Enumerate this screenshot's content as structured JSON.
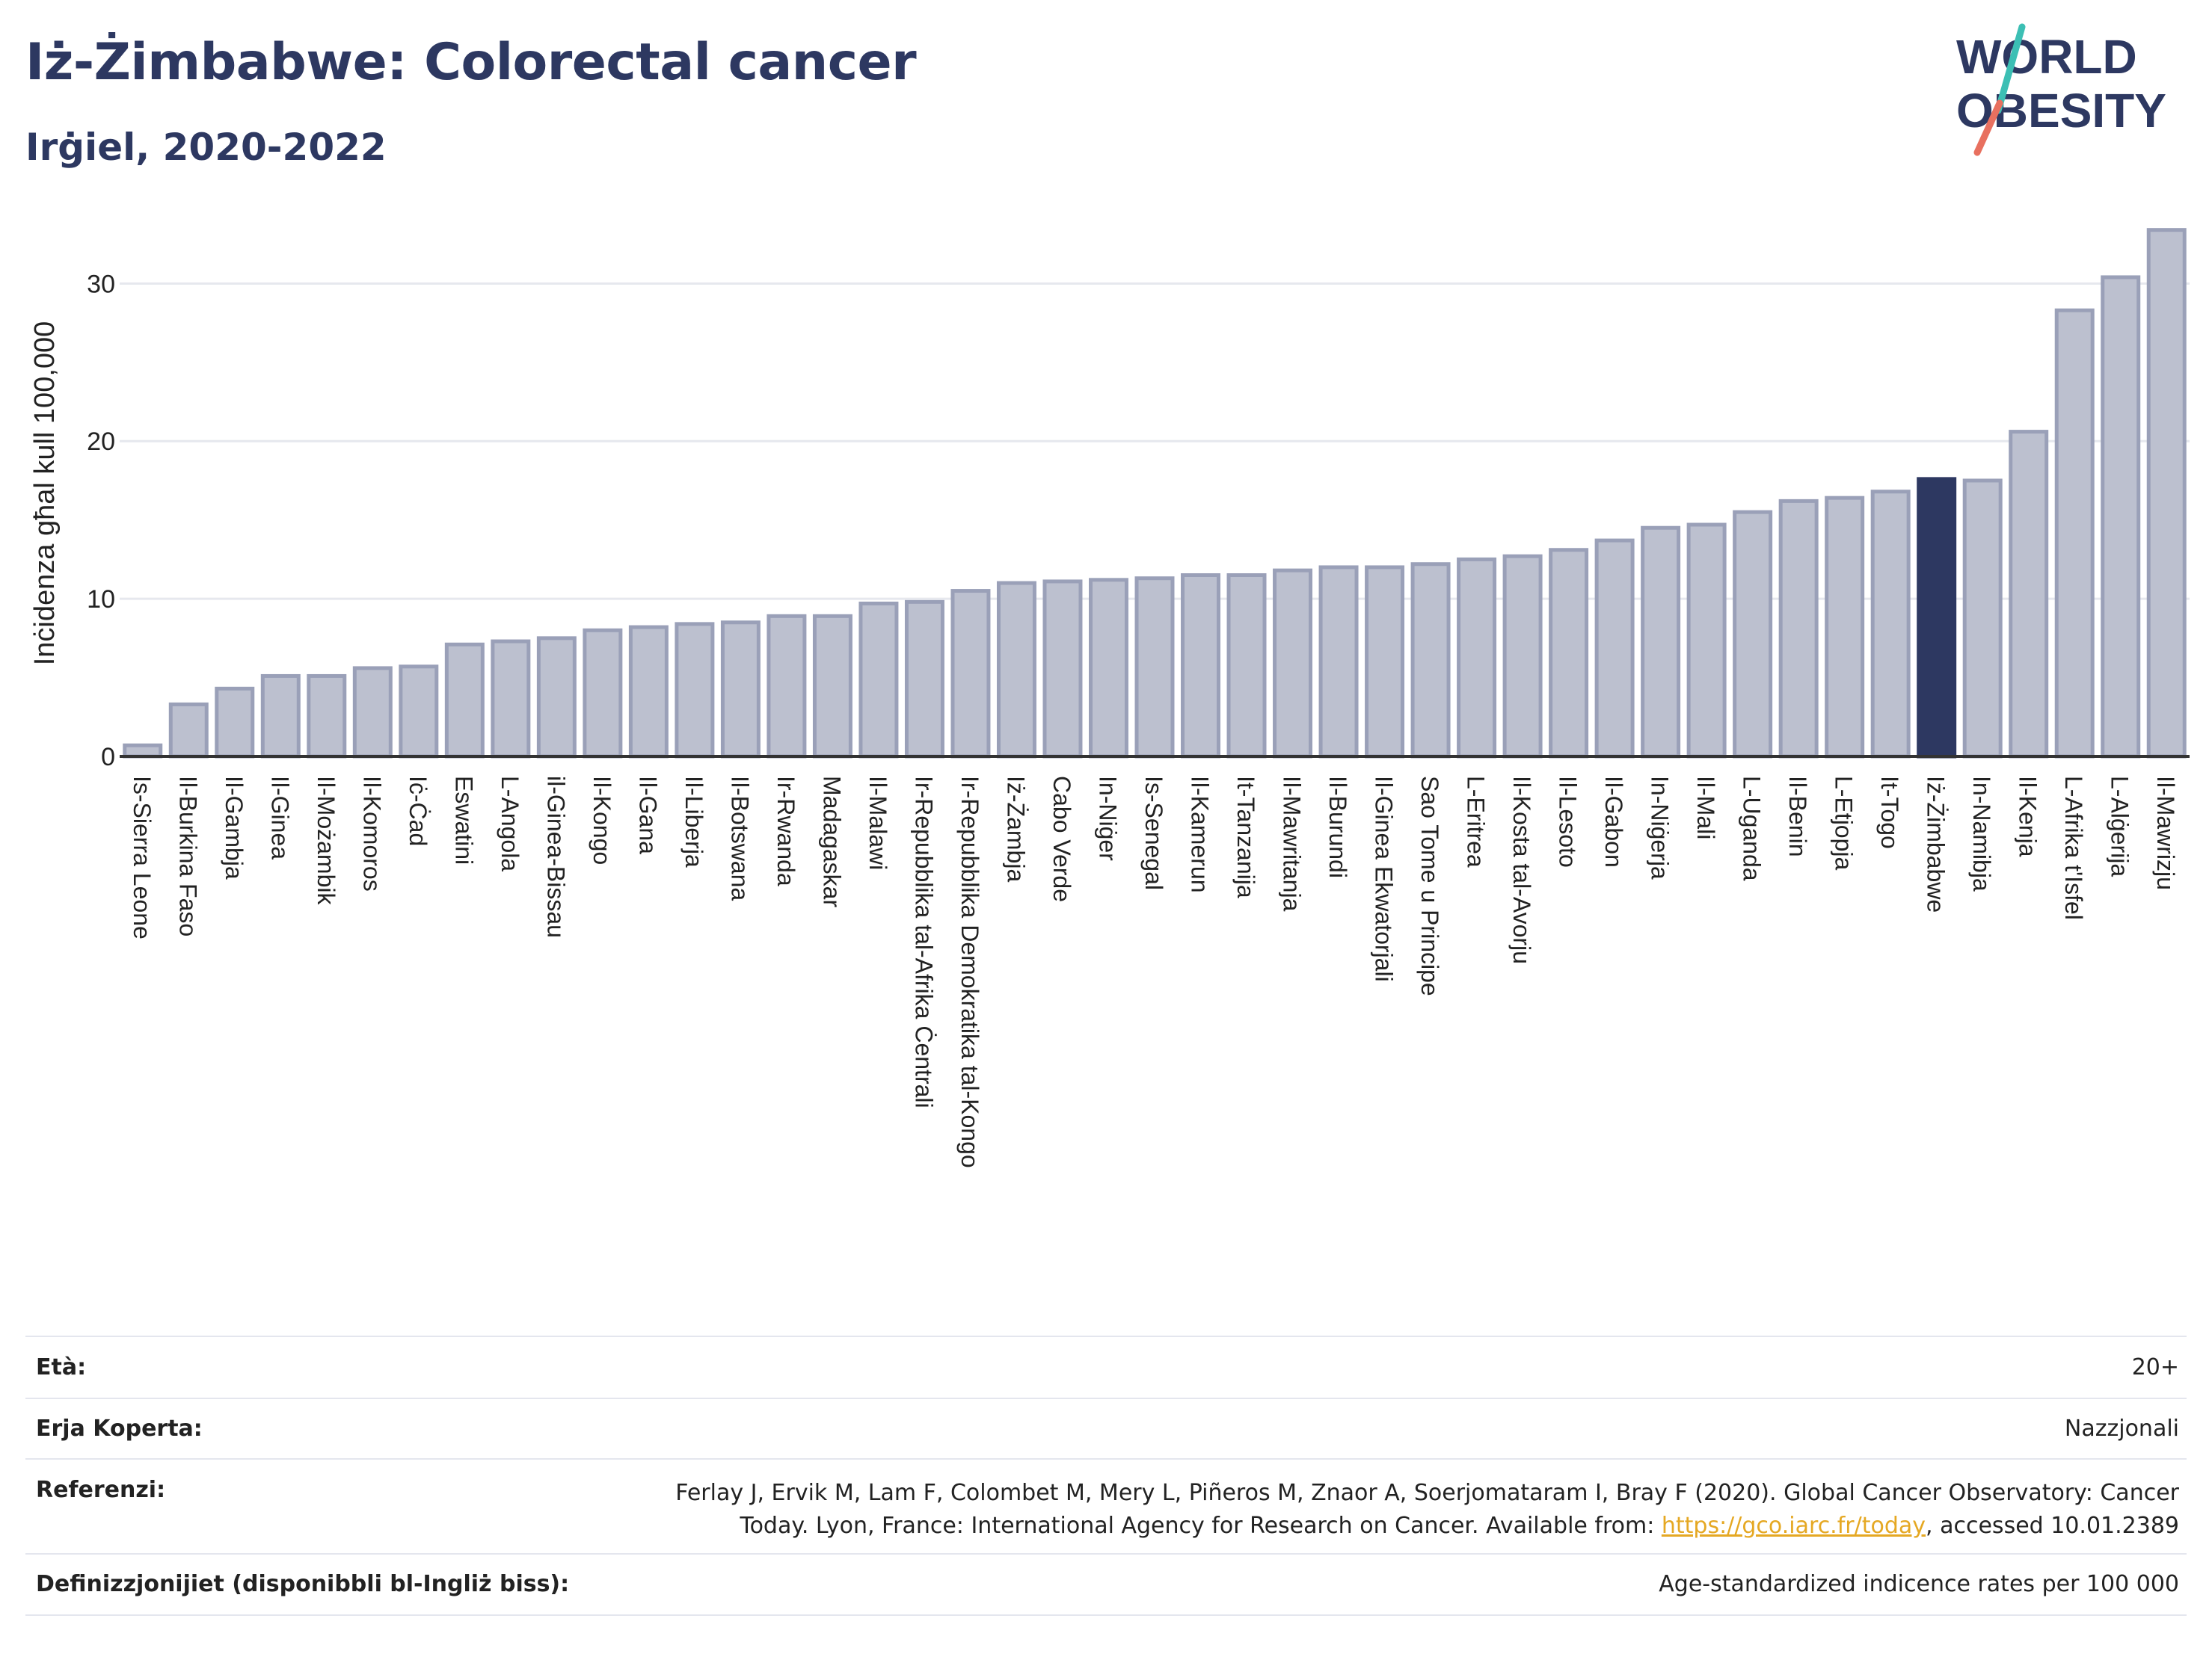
{
  "header": {
    "title": "Iż-Żimbabwe: Colorectal cancer",
    "subtitle": "Irġiel, 2020-2022"
  },
  "logo": {
    "line1": "WORLD",
    "line2": "OBESITY",
    "colors": {
      "text": "#2d3861",
      "slash_top": "#3cbfb4",
      "slash_bottom": "#e8705f"
    }
  },
  "chart_data": {
    "type": "bar",
    "ylabel": "Inċidenza għal kull 100,000",
    "ylim": [
      0,
      34
    ],
    "yticks": [
      0,
      10,
      20,
      30
    ],
    "grid": true,
    "categories": [
      "Is-Sierra Leone",
      "Il-Burkina Faso",
      "Il-Gambja",
      "Il-Ginea",
      "Il-Możambik",
      "Il-Komoros",
      "Iċ-Ċad",
      "Eswatini",
      "L-Angola",
      "il-Ginea-Bissau",
      "Il-Kongo",
      "Il-Gana",
      "Il-Liberja",
      "Il-Botswana",
      "Ir-Rwanda",
      "Madagaskar",
      "Il-Malawi",
      "Ir-Repubblika tal-Afrika Ċentrali",
      "Ir-Repubblika Demokratika tal-Kongo",
      "Iż-Żambja",
      "Cabo Verde",
      "In-Niġer",
      "Is-Senegal",
      "Il-Kamerun",
      "It-Tanzanija",
      "Il-Mawritanja",
      "Il-Burundi",
      "Il-Ginea Ekwatorjali",
      "Sao Tome u Principe",
      "L-Eritrea",
      "Il-Kosta tal-Avorju",
      "Il-Lesoto",
      "Il-Gabon",
      "In-Niġerja",
      "Il-Mali",
      "L-Uganda",
      "Il-Benin",
      "L-Etjopja",
      "It-Togo",
      "Iż-Żimbabwe",
      "In-Namibja",
      "Il-Kenja",
      "L-Afrika t'Isfel",
      "L-Alġerija",
      "Il-Mawrizju"
    ],
    "values": [
      0.7,
      3.3,
      4.3,
      5.1,
      5.1,
      5.6,
      5.7,
      7.1,
      7.3,
      7.5,
      8.0,
      8.2,
      8.4,
      8.5,
      8.9,
      8.9,
      9.7,
      9.8,
      10.5,
      11.0,
      11.1,
      11.2,
      11.3,
      11.5,
      11.5,
      11.8,
      12.0,
      12.0,
      12.2,
      12.5,
      12.7,
      13.1,
      13.7,
      14.5,
      14.7,
      15.5,
      16.2,
      16.4,
      16.8,
      17.6,
      17.5,
      20.6,
      28.3,
      30.4,
      33.4
    ],
    "highlight": "Iż-Żimbabwe",
    "colors": {
      "bar": "#bcc0cf",
      "bar_edge": "#9aa0b8",
      "highlight": "#2d3861",
      "grid": "#e6e8ee",
      "axis": "#333333"
    }
  },
  "meta": {
    "age": {
      "label": "Età:",
      "value": "20+"
    },
    "area": {
      "label": "Erja Koperta:",
      "value": "Nazzjonali"
    },
    "refs": {
      "label": "Referenzi:",
      "line1": "Ferlay J, Ervik M, Lam F, Colombet M, Mery L, Piñeros M, Znaor A, Soerjomataram I, Bray F (2020). Global Cancer Observatory: Cancer",
      "line2_pre": "Today. Lyon, France: International Agency for Research on Cancer. Available from: ",
      "link": "https://gco.iarc.fr/today",
      "line2_post": ", accessed 10.01.2389"
    },
    "defs": {
      "label": "Definizzjonijiet (disponibbli bl-Ingliż biss):",
      "value": "Age-standardized indicence rates per 100 000"
    }
  }
}
